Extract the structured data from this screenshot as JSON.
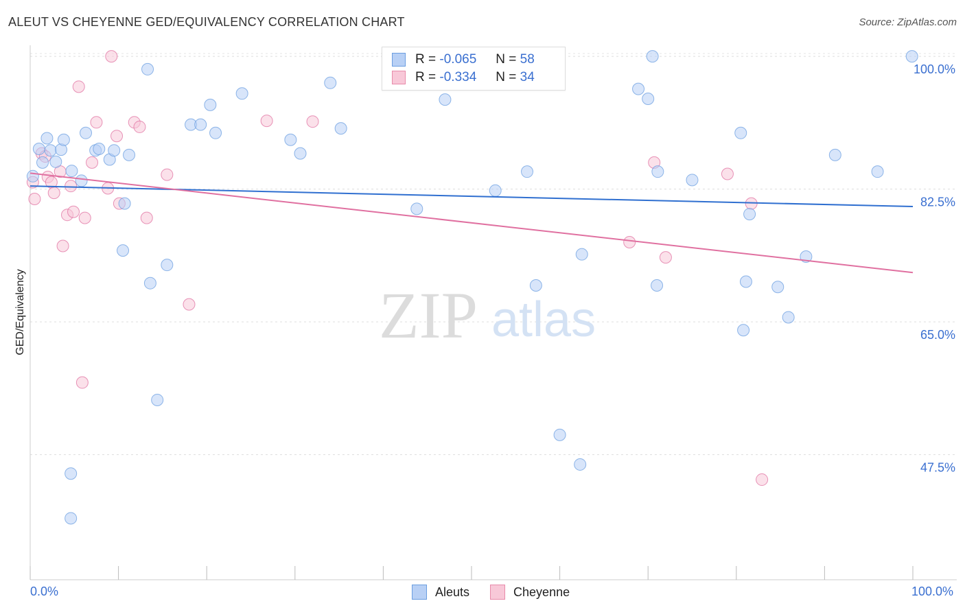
{
  "header": {
    "title": "ALEUT VS CHEYENNE GED/EQUIVALENCY CORRELATION CHART",
    "source": "Source: ZipAtlas.com"
  },
  "legend": {
    "rows": [
      {
        "r_label": "R =",
        "r_value": "-0.065",
        "n_label": "N =",
        "n_value": "58",
        "fill": "#b8d0f5",
        "stroke": "#6a9de0"
      },
      {
        "r_label": "R =",
        "r_value": "-0.334",
        "n_label": "N =",
        "n_value": "34",
        "fill": "#f8c8d8",
        "stroke": "#e88aaa"
      }
    ]
  },
  "bottom_legend": {
    "items": [
      {
        "label": "Aleuts",
        "fill": "#b8d0f5",
        "stroke": "#6a9de0"
      },
      {
        "label": "Cheyenne",
        "fill": "#f8c8d8",
        "stroke": "#e88aaa"
      }
    ]
  },
  "chart_data": {
    "type": "scatter",
    "title": "ALEUT VS CHEYENNE GED/EQUIVALENCY CORRELATION CHART",
    "xlabel": "",
    "ylabel": "GED/Equivalency",
    "xlim": [
      0,
      100
    ],
    "ylim": [
      31,
      102
    ],
    "x_tick_labels": [
      "0.0%",
      "100.0%"
    ],
    "y_ticks": [
      47.5,
      65.0,
      82.5,
      100.0
    ],
    "y_tick_labels": [
      "47.5%",
      "65.0%",
      "82.5%",
      "100.0%"
    ],
    "grid": true,
    "watermark": {
      "zip": "ZIP",
      "atlas": "atlas"
    },
    "series": [
      {
        "name": "Aleuts",
        "color": "#6a9de0",
        "fill": "#b8d0f5",
        "trend": {
          "x": [
            0,
            100
          ],
          "y": [
            82.9,
            80.2
          ]
        },
        "points": [
          [
            0.3,
            84.2
          ],
          [
            1.0,
            87.8
          ],
          [
            1.4,
            86.0
          ],
          [
            1.9,
            89.2
          ],
          [
            2.3,
            87.6
          ],
          [
            2.9,
            86.1
          ],
          [
            3.5,
            87.7
          ],
          [
            3.8,
            89.0
          ],
          [
            4.7,
            84.9
          ],
          [
            5.8,
            83.6
          ],
          [
            6.3,
            89.9
          ],
          [
            7.4,
            87.6
          ],
          [
            7.8,
            87.8
          ],
          [
            9.0,
            86.4
          ],
          [
            9.5,
            87.6
          ],
          [
            10.5,
            74.4
          ],
          [
            10.7,
            80.6
          ],
          [
            11.2,
            87.0
          ],
          [
            13.3,
            98.3
          ],
          [
            13.6,
            70.1
          ],
          [
            14.4,
            54.7
          ],
          [
            15.5,
            72.5
          ],
          [
            18.2,
            91.0
          ],
          [
            19.3,
            91.0
          ],
          [
            20.4,
            93.6
          ],
          [
            21.0,
            89.9
          ],
          [
            24.0,
            95.1
          ],
          [
            29.5,
            89.0
          ],
          [
            30.6,
            87.2
          ],
          [
            34.0,
            96.5
          ],
          [
            35.2,
            90.5
          ],
          [
            43.8,
            79.9
          ],
          [
            47.0,
            94.3
          ],
          [
            52.7,
            82.3
          ],
          [
            56.0,
            100.0
          ],
          [
            56.3,
            84.8
          ],
          [
            57.3,
            69.8
          ],
          [
            60.0,
            50.1
          ],
          [
            62.3,
            46.2
          ],
          [
            62.5,
            73.9
          ],
          [
            68.9,
            95.7
          ],
          [
            70.0,
            94.4
          ],
          [
            70.5,
            100.0
          ],
          [
            71.0,
            69.8
          ],
          [
            71.1,
            84.8
          ],
          [
            75.0,
            83.7
          ],
          [
            80.5,
            89.9
          ],
          [
            80.8,
            63.9
          ],
          [
            81.5,
            79.2
          ],
          [
            81.1,
            70.3
          ],
          [
            84.7,
            69.6
          ],
          [
            85.9,
            65.6
          ],
          [
            87.9,
            73.6
          ],
          [
            91.2,
            87.0
          ],
          [
            96.0,
            84.8
          ],
          [
            99.9,
            100.0
          ],
          [
            4.6,
            45.0
          ],
          [
            4.6,
            39.1
          ]
        ]
      },
      {
        "name": "Cheyenne",
        "color": "#e070a0",
        "fill": "#f8c8d8",
        "trend": {
          "x": [
            0,
            100
          ],
          "y": [
            84.6,
            71.5
          ]
        },
        "points": [
          [
            0.5,
            81.2
          ],
          [
            0.3,
            83.4
          ],
          [
            1.3,
            87.2
          ],
          [
            1.7,
            86.8
          ],
          [
            2.0,
            84.1
          ],
          [
            2.4,
            83.4
          ],
          [
            2.7,
            82.0
          ],
          [
            3.4,
            84.8
          ],
          [
            3.7,
            75.0
          ],
          [
            4.2,
            79.1
          ],
          [
            4.6,
            82.9
          ],
          [
            4.9,
            79.5
          ],
          [
            5.5,
            96.0
          ],
          [
            5.9,
            57.0
          ],
          [
            6.2,
            78.7
          ],
          [
            7.0,
            86.0
          ],
          [
            7.5,
            91.3
          ],
          [
            8.8,
            82.6
          ],
          [
            9.2,
            100.0
          ],
          [
            9.8,
            89.5
          ],
          [
            10.1,
            80.6
          ],
          [
            11.8,
            91.3
          ],
          [
            12.4,
            90.7
          ],
          [
            13.2,
            78.7
          ],
          [
            15.5,
            84.4
          ],
          [
            18.0,
            67.3
          ],
          [
            26.8,
            91.5
          ],
          [
            32.0,
            91.4
          ],
          [
            67.9,
            75.5
          ],
          [
            70.7,
            86.0
          ],
          [
            72.0,
            73.5
          ],
          [
            79.0,
            84.5
          ],
          [
            81.7,
            80.6
          ],
          [
            82.9,
            44.2
          ]
        ]
      }
    ]
  }
}
